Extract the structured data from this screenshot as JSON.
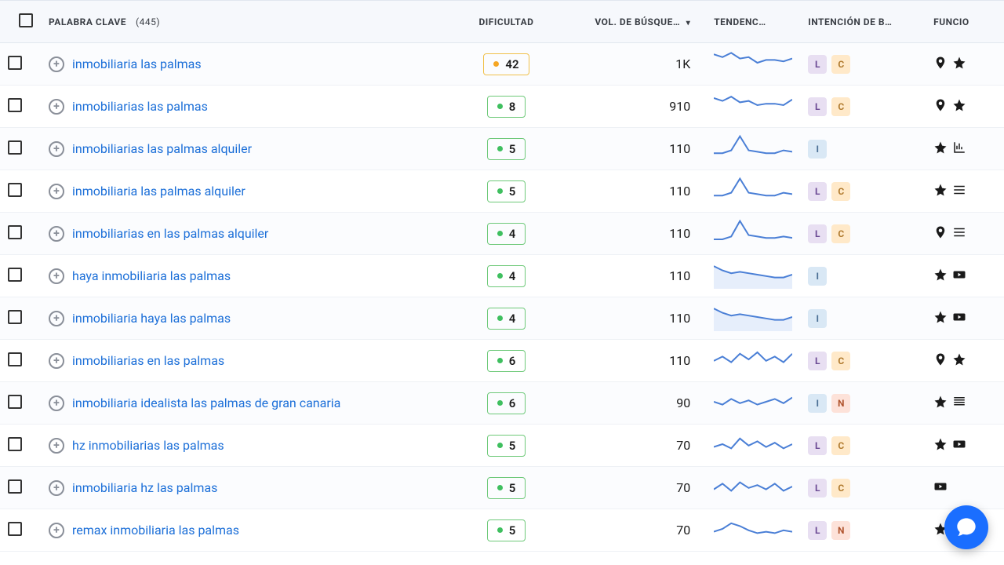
{
  "header": {
    "keyword": "PALABRA CLAVE",
    "keyword_count": "(445)",
    "difficulty": "DIFICULTAD",
    "volume": "VOL. DE BÚSQUE…",
    "trend": "TENDENC…",
    "intent": "INTENCIÓN DE B…",
    "functions": "FUNCIO"
  },
  "rows": [
    {
      "keyword": "inmobiliaria las palmas",
      "diff": 42,
      "diff_tier": "yellow",
      "vol": "1K",
      "trend": [
        16,
        14,
        17,
        13,
        14,
        10,
        12,
        12,
        11,
        13
      ],
      "intents": [
        "L",
        "C"
      ],
      "funcs": [
        "pin",
        "star"
      ]
    },
    {
      "keyword": "inmobiliarias las palmas",
      "diff": 8,
      "diff_tier": "green",
      "vol": "910",
      "trend": [
        15,
        13,
        16,
        12,
        13,
        10,
        11,
        11,
        10,
        14
      ],
      "intents": [
        "L",
        "C"
      ],
      "funcs": [
        "pin",
        "star"
      ]
    },
    {
      "keyword": "inmobiliarias las palmas alquiler",
      "diff": 5,
      "diff_tier": "green",
      "vol": "110",
      "trend": [
        6,
        6,
        8,
        18,
        8,
        7,
        6,
        6,
        8,
        7
      ],
      "intents": [
        "I"
      ],
      "funcs": [
        "star",
        "chart"
      ]
    },
    {
      "keyword": "inmobiliaria las palmas alquiler",
      "diff": 5,
      "diff_tier": "green",
      "vol": "110",
      "trend": [
        6,
        6,
        8,
        18,
        8,
        7,
        6,
        6,
        8,
        7
      ],
      "intents": [
        "L",
        "C"
      ],
      "funcs": [
        "star",
        "list"
      ]
    },
    {
      "keyword": "inmobiliarias en las palmas alquiler",
      "diff": 4,
      "diff_tier": "green",
      "vol": "110",
      "trend": [
        5,
        5,
        7,
        18,
        8,
        7,
        6,
        6,
        7,
        6
      ],
      "intents": [
        "L",
        "C"
      ],
      "funcs": [
        "pin",
        "list"
      ]
    },
    {
      "keyword": "haya inmobiliaria las palmas",
      "diff": 4,
      "diff_tier": "green",
      "vol": "110",
      "trend": [
        16,
        13,
        11,
        12,
        11,
        10,
        9,
        8,
        8,
        10
      ],
      "fill": true,
      "intents": [
        "I"
      ],
      "funcs": [
        "star",
        "video"
      ]
    },
    {
      "keyword": "inmobiliaria haya las palmas",
      "diff": 4,
      "diff_tier": "green",
      "vol": "110",
      "trend": [
        16,
        13,
        11,
        12,
        11,
        10,
        9,
        8,
        8,
        10
      ],
      "fill": true,
      "intents": [
        "I"
      ],
      "funcs": [
        "star",
        "video"
      ]
    },
    {
      "keyword": "inmobiliarias en las palmas",
      "diff": 6,
      "diff_tier": "green",
      "vol": "110",
      "trend": [
        9,
        12,
        8,
        14,
        10,
        15,
        9,
        12,
        8,
        14
      ],
      "intents": [
        "L",
        "C"
      ],
      "funcs": [
        "pin",
        "star"
      ]
    },
    {
      "keyword": "inmobiliaria idealista las palmas de gran canaria",
      "diff": 6,
      "diff_tier": "green",
      "vol": "90",
      "trend": [
        10,
        8,
        12,
        9,
        11,
        8,
        10,
        12,
        9,
        13
      ],
      "intents": [
        "I",
        "N"
      ],
      "funcs": [
        "star",
        "listdense"
      ]
    },
    {
      "keyword": "hz inmobiliarias las palmas",
      "diff": 5,
      "diff_tier": "green",
      "vol": "70",
      "trend": [
        8,
        10,
        7,
        14,
        9,
        12,
        8,
        11,
        7,
        10
      ],
      "intents": [
        "L",
        "C"
      ],
      "funcs": [
        "star",
        "video"
      ]
    },
    {
      "keyword": "inmobiliaria hz las palmas",
      "diff": 5,
      "diff_tier": "green",
      "vol": "70",
      "trend": [
        8,
        12,
        7,
        13,
        9,
        11,
        8,
        12,
        7,
        10
      ],
      "intents": [
        "L",
        "C"
      ],
      "funcs": [
        "video"
      ]
    },
    {
      "keyword": "remax inmobiliaria las palmas",
      "diff": 5,
      "diff_tier": "green",
      "vol": "70",
      "trend": [
        8,
        10,
        14,
        12,
        9,
        7,
        8,
        7,
        9,
        8
      ],
      "intents": [
        "L",
        "N"
      ],
      "funcs": [
        "star"
      ]
    }
  ],
  "colors": {
    "accent": "#1c6fd8"
  }
}
